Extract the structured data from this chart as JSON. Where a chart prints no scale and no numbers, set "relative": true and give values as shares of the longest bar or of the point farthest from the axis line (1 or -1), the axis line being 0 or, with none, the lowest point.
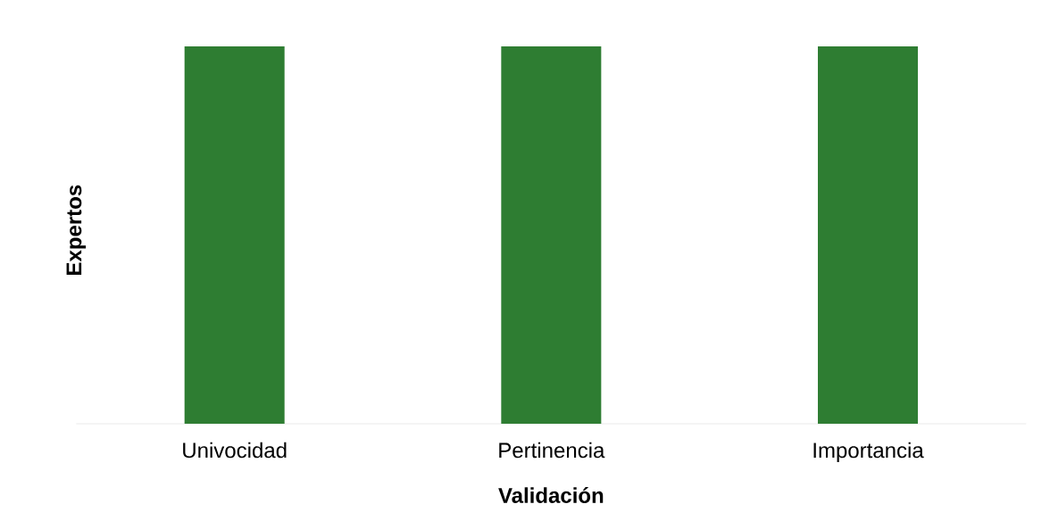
{
  "chart_data": {
    "type": "bar",
    "xlabel": "Validación",
    "ylabel": "Expertos",
    "categories": [
      "Univocidad",
      "Pertinencia",
      "Importancia"
    ],
    "values": [
      1,
      1,
      1
    ],
    "color": "#2e7d32",
    "relative": true
  }
}
